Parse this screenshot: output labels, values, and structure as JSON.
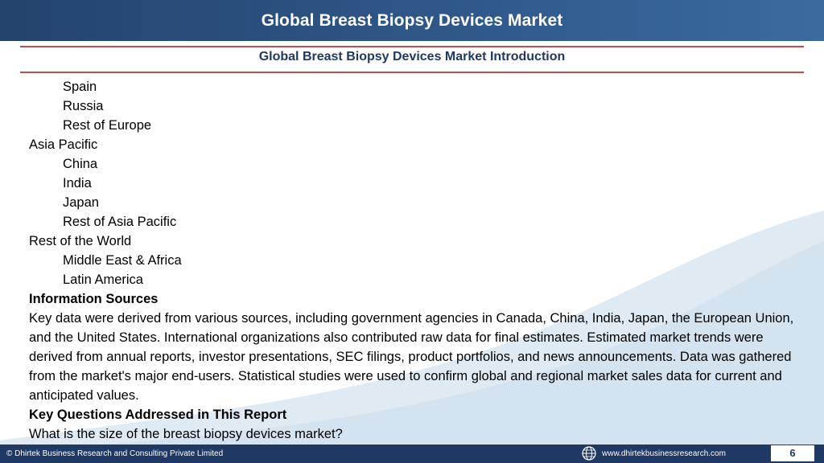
{
  "header": {
    "title": "Global Breast Biopsy Devices Market"
  },
  "subtitle": "Global Breast Biopsy Devices Market  Introduction",
  "lines": {
    "l1": "Spain",
    "l2": "Russia",
    "l3": "Rest of Europe",
    "l4": "Asia Pacific",
    "l5": "China",
    "l6": "India",
    "l7": "Japan",
    "l8": "Rest of Asia Pacific",
    "l9": "Rest of the World",
    "l10": "Middle East & Africa",
    "l11": "Latin America"
  },
  "sections": {
    "info_heading": "Information Sources",
    "info_text": "Key data were derived from various sources, including government agencies in Canada, China, India, Japan, the European Union, and the United States. International organizations also contributed raw data for final estimates. Estimated market trends were derived from annual reports, investor presentations, SEC filings, product portfolios, and news announcements. Data was gathered from the market's major end-users. Statistical studies were used to confirm global and regional market sales data for current and anticipated values.",
    "key_heading": "Key Questions Addressed in This Report",
    "key_text": "What is the size of the breast biopsy devices market?"
  },
  "footer": {
    "copyright": "© Dhirtek Business Research and Consulting Private Limited",
    "website": "www.dhirtekbusinessresearch.com",
    "page_number": "6",
    "globe_icon": "globe-icon"
  },
  "colors": {
    "header_bg": "#2e5687",
    "footer_bg": "#1f3864",
    "rule": "#c0504d",
    "subtitle": "#1f3864",
    "wave": "#d9e7f1"
  }
}
